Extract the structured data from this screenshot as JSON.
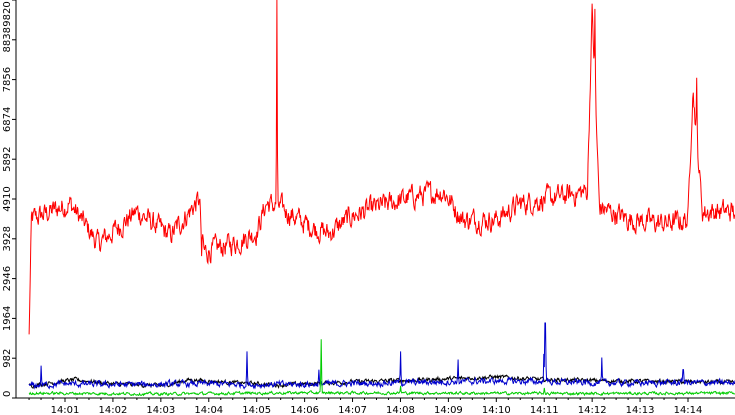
{
  "chart_data": {
    "type": "line",
    "title": "",
    "xlabel": "",
    "ylabel": "",
    "grid": false,
    "legend": "none",
    "x_ticks": [
      "14:01",
      "14:02",
      "14:03",
      "14:04",
      "14:05",
      "14:06",
      "14:07",
      "14:08",
      "14:09",
      "14:10",
      "14:11",
      "14:12",
      "14:13",
      "14:14"
    ],
    "x_range_minutes": [
      0.25,
      15.0
    ],
    "y_ticks": [
      0,
      982,
      1964,
      2946,
      3928,
      4910,
      5892,
      6874,
      7856,
      8838,
      9820
    ],
    "y_tick_labels": [
      "0",
      "982",
      "1964",
      "2946",
      "3928",
      "4910",
      "5892",
      "6874",
      "7856",
      "8838",
      "9820"
    ],
    "ylim": [
      0,
      9820
    ],
    "series": [
      {
        "color": "#ff0000",
        "baseline": 4300,
        "noise": 320,
        "points": [
          [
            0.25,
            1500
          ],
          [
            0.3,
            4400
          ],
          [
            1.1,
            4800
          ],
          [
            1.7,
            3800
          ],
          [
            2.5,
            4600
          ],
          [
            3.2,
            4000
          ],
          [
            3.8,
            4900
          ],
          [
            3.9,
            3600
          ],
          [
            4.6,
            3850
          ],
          [
            5.0,
            4100
          ],
          [
            5.2,
            4800
          ],
          [
            5.4,
            9820
          ],
          [
            5.5,
            4700
          ],
          [
            6.0,
            4300
          ],
          [
            6.5,
            4050
          ],
          [
            7.0,
            4500
          ],
          [
            7.5,
            4700
          ],
          [
            8.2,
            4950
          ],
          [
            8.9,
            5100
          ],
          [
            9.3,
            4400
          ],
          [
            10.0,
            4400
          ],
          [
            10.5,
            4800
          ],
          [
            11.0,
            4900
          ],
          [
            11.5,
            5000
          ],
          [
            11.9,
            5100
          ],
          [
            12.0,
            9600
          ],
          [
            12.15,
            4700
          ],
          [
            12.8,
            4400
          ],
          [
            13.5,
            4300
          ],
          [
            14.0,
            4400
          ],
          [
            14.1,
            7700
          ],
          [
            14.2,
            7900
          ],
          [
            14.3,
            4600
          ],
          [
            15.0,
            4600
          ]
        ],
        "spikes": [
          [
            3.85,
            3500
          ],
          [
            5.42,
            9820
          ],
          [
            12.06,
            9600
          ],
          [
            14.18,
            7900
          ]
        ]
      },
      {
        "color": "#000000",
        "baseline": 350,
        "noise": 60,
        "points": [
          [
            0.25,
            300
          ],
          [
            1.2,
            450
          ],
          [
            2.0,
            350
          ],
          [
            3.0,
            300
          ],
          [
            3.6,
            450
          ],
          [
            4.5,
            380
          ],
          [
            5.5,
            320
          ],
          [
            7.0,
            400
          ],
          [
            8.5,
            450
          ],
          [
            10.0,
            520
          ],
          [
            11.0,
            450
          ],
          [
            12.5,
            420
          ],
          [
            14.0,
            400
          ],
          [
            15.0,
            380
          ]
        ],
        "spikes": []
      },
      {
        "color": "#0000cc",
        "baseline": 330,
        "noise": 90,
        "points": [
          [
            0.25,
            300
          ],
          [
            1.0,
            350
          ],
          [
            2.0,
            330
          ],
          [
            3.0,
            340
          ],
          [
            4.0,
            350
          ],
          [
            5.0,
            330
          ],
          [
            6.0,
            340
          ],
          [
            7.0,
            360
          ],
          [
            8.0,
            380
          ],
          [
            9.0,
            400
          ],
          [
            10.0,
            420
          ],
          [
            11.0,
            400
          ],
          [
            12.0,
            380
          ],
          [
            13.0,
            370
          ],
          [
            14.0,
            380
          ],
          [
            15.0,
            370
          ]
        ],
        "spikes": [
          [
            0.5,
            800
          ],
          [
            4.8,
            1150
          ],
          [
            6.3,
            700
          ],
          [
            8.0,
            1150
          ],
          [
            9.2,
            950
          ],
          [
            11.0,
            3150
          ],
          [
            11.02,
            1850
          ],
          [
            12.2,
            1000
          ],
          [
            13.9,
            700
          ]
        ]
      },
      {
        "color": "#00cc00",
        "baseline": 120,
        "noise": 40,
        "points": [
          [
            0.25,
            120
          ],
          [
            3.0,
            100
          ],
          [
            6.0,
            130
          ],
          [
            9.0,
            120
          ],
          [
            12.0,
            110
          ],
          [
            15.0,
            120
          ]
        ],
        "spikes": [
          [
            6.35,
            1450
          ],
          [
            8.0,
            300
          ],
          [
            11.0,
            250
          ]
        ]
      }
    ]
  }
}
